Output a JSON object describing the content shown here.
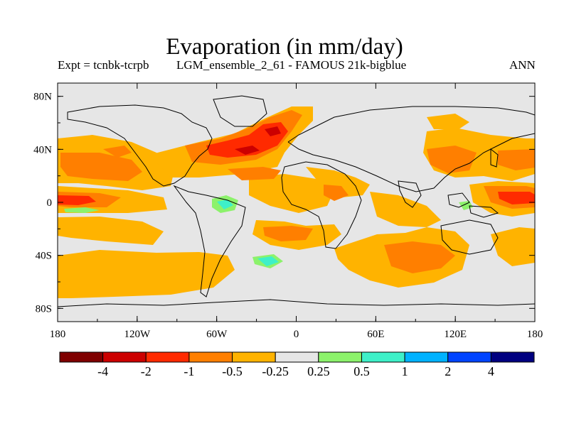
{
  "header": {
    "title": "Evaporation (in mm/day)",
    "experiment": "Expt = tcnbk-tcrpb",
    "description": "LGM_ensemble_2_61 - FAMOUS 21k-bigblue",
    "period": "ANN"
  },
  "map": {
    "lat_ticks": [
      "80N",
      "40N",
      "0",
      "40S",
      "80S"
    ],
    "lon_ticks": [
      "180",
      "120W",
      "60W",
      "0",
      "60E",
      "120E",
      "180"
    ],
    "lat_range": [
      -90,
      90
    ],
    "lon_range": [
      -180,
      180
    ],
    "background_color": "#e6e6e6"
  },
  "colorbar": {
    "colors": [
      "#7f0000",
      "#cc0000",
      "#ff2a00",
      "#ff7f00",
      "#ffb300",
      "#e6e6e6",
      "#8cf26b",
      "#3ef0c8",
      "#00b2ff",
      "#0044ff",
      "#000080"
    ],
    "labels": [
      "-4",
      "-2",
      "-1",
      "-0.5",
      "-0.25",
      "0.25",
      "0.5",
      "1",
      "2",
      "4"
    ]
  }
}
